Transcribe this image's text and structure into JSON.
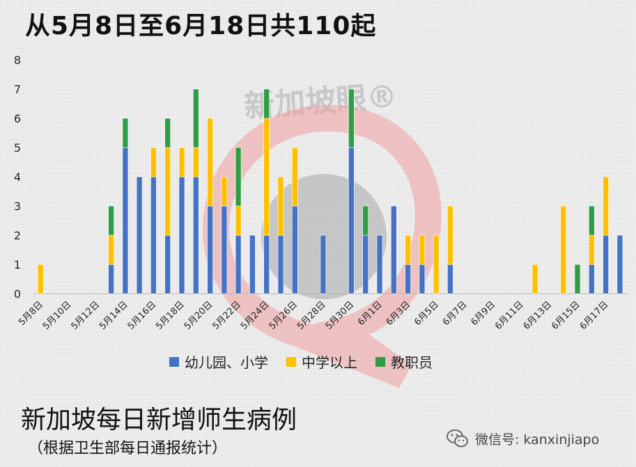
{
  "page": {
    "title": "从5月8日至6月18日共110起",
    "subtitle": "新加坡每日新增师生病例",
    "note": "（根据卫生部每日通报统计）",
    "watermark_text": "新加坡眼®",
    "wechat_label": "微信号: kanxinjiapo"
  },
  "chart_data": {
    "type": "bar",
    "stacked": true,
    "title": "从5月8日至6月18日共110起",
    "ylim": [
      0,
      8
    ],
    "yticks": [
      0,
      1,
      2,
      3,
      4,
      5,
      6,
      7,
      8
    ],
    "grid": false,
    "legend_position": "bottom",
    "categories": [
      "5月8日",
      "5月9日",
      "5月10日",
      "5月11日",
      "5月12日",
      "5月13日",
      "5月14日",
      "5月15日",
      "5月16日",
      "5月17日",
      "5月18日",
      "5月19日",
      "5月20日",
      "5月21日",
      "5月22日",
      "5月23日",
      "5月24日",
      "5月25日",
      "5月26日",
      "5月27日",
      "5月28日",
      "5月29日",
      "5月30日",
      "5月31日",
      "6月1日",
      "6月2日",
      "6月3日",
      "6月4日",
      "6月5日",
      "6月6日",
      "6月7日",
      "6月8日",
      "6月9日",
      "6月10日",
      "6月11日",
      "6月12日",
      "6月13日",
      "6月14日",
      "6月15日",
      "6月16日",
      "6月17日",
      "6月18日"
    ],
    "tick_labels": [
      "5月8日",
      "",
      "5月10日",
      "",
      "5月12日",
      "",
      "5月14日",
      "",
      "5月16日",
      "",
      "5月18日",
      "",
      "5月20日",
      "",
      "5月22日",
      "",
      "5月24日",
      "",
      "5月26日",
      "",
      "5月28日",
      "",
      "5月30日",
      "",
      "6月1日",
      "",
      "6月3日",
      "",
      "6月5日",
      "",
      "6月7日",
      "",
      "6月9日",
      "",
      "6月11日",
      "",
      "6月13日",
      "",
      "6月15日",
      "",
      "6月17日",
      ""
    ],
    "series": [
      {
        "name": "幼儿园、小学",
        "color": "#4472c4",
        "values": [
          0,
          0,
          0,
          0,
          0,
          1,
          5,
          4,
          4,
          2,
          4,
          4,
          3,
          3,
          2,
          2,
          2,
          2,
          3,
          0,
          2,
          0,
          5,
          2,
          2,
          3,
          1,
          1,
          0,
          1,
          0,
          0,
          0,
          0,
          0,
          0,
          0,
          0,
          0,
          1,
          2,
          2
        ]
      },
      {
        "name": "中学以上",
        "color": "#ffc000",
        "values": [
          1,
          0,
          0,
          0,
          0,
          1,
          0,
          0,
          1,
          3,
          1,
          1,
          3,
          1,
          1,
          0,
          4,
          2,
          2,
          0,
          0,
          0,
          0,
          0,
          0,
          0,
          1,
          1,
          2,
          2,
          0,
          0,
          0,
          0,
          0,
          1,
          0,
          3,
          0,
          1,
          2,
          0
        ]
      },
      {
        "name": "教职员",
        "color": "#2e9e44",
        "values": [
          0,
          0,
          0,
          0,
          0,
          1,
          1,
          0,
          0,
          1,
          0,
          2,
          0,
          0,
          2,
          0,
          1,
          0,
          0,
          0,
          0,
          0,
          2,
          1,
          0,
          0,
          0,
          0,
          0,
          0,
          0,
          0,
          0,
          0,
          0,
          0,
          0,
          0,
          1,
          1,
          0,
          0
        ]
      }
    ]
  }
}
